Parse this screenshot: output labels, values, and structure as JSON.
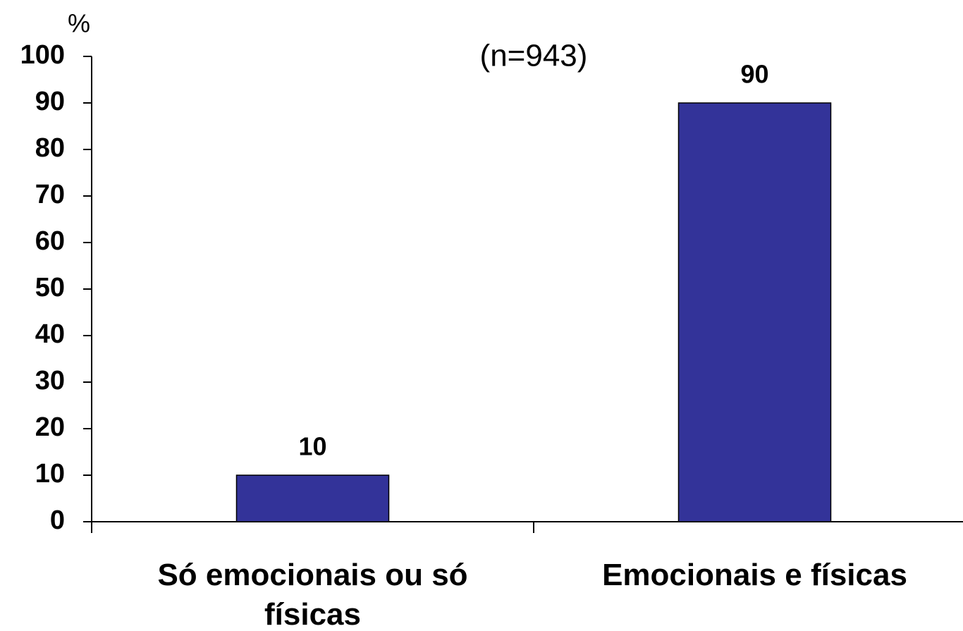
{
  "chart_data": {
    "type": "bar",
    "subtitle": "(n=943)",
    "y_label": "%",
    "categories": [
      "Só emocionais ou só físicas",
      "Emocionais e físicas"
    ],
    "values": [
      10,
      90
    ],
    "color": "#333399",
    "ylim": [
      0,
      100
    ],
    "yticks": [
      0,
      10,
      20,
      30,
      40,
      50,
      60,
      70,
      80,
      90,
      100
    ],
    "grid": false
  }
}
